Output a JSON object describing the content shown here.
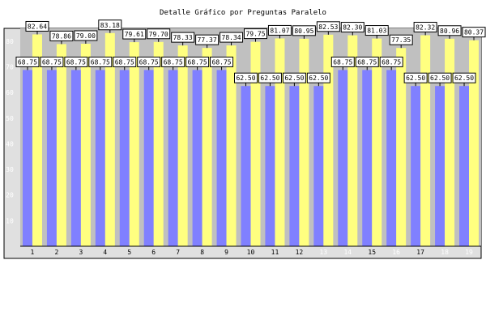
{
  "chart_data": {
    "type": "bar",
    "title": "Detalle Gráfico por Preguntas Paralelo",
    "categories": [
      "1",
      "2",
      "3",
      "4",
      "5",
      "6",
      "7",
      "8",
      "9",
      "10",
      "11",
      "12",
      "13",
      "14",
      "15",
      "16",
      "17",
      "18",
      "19"
    ],
    "series": [
      {
        "color": "#8080ff",
        "labels": [
          "68.75",
          "68.75",
          "68.75",
          "68.75",
          "68.75",
          "68.75",
          "68.75",
          "68.75",
          "68.75",
          "62.50",
          "62.50",
          "62.50",
          "62.50",
          "68.75",
          "68.75",
          "68.75",
          "62.50",
          "62.50",
          "62.50"
        ],
        "values": [
          68.75,
          68.75,
          68.75,
          68.75,
          68.75,
          68.75,
          68.75,
          68.75,
          68.75,
          62.5,
          62.5,
          62.5,
          62.5,
          68.75,
          68.75,
          68.75,
          62.5,
          62.5,
          62.5
        ]
      },
      {
        "color": "#ffff80",
        "labels": [
          "82.64",
          "78.86",
          "79.00",
          "83.18",
          "79.61",
          "79.70",
          "78.33",
          "77.37",
          "78.34",
          "79.75",
          "81.07",
          "80.95",
          "82.53",
          "82.30",
          "81.03",
          "77.35",
          "82.32",
          "80.96",
          "80.37"
        ],
        "values": [
          82.64,
          78.86,
          79.0,
          83.18,
          79.61,
          79.7,
          78.33,
          77.37,
          78.34,
          79.75,
          81.07,
          80.95,
          82.53,
          82.3,
          81.03,
          77.35,
          82.32,
          80.96,
          80.37
        ]
      }
    ],
    "yticks": [
      "10",
      "20",
      "30",
      "40",
      "50",
      "60",
      "70",
      "80"
    ],
    "ylim": [
      0,
      85
    ],
    "grid": false,
    "light_xticks": [
      "13",
      "14",
      "16",
      "18",
      "19"
    ],
    "colors": {
      "plot_bg": "#c0c0c0",
      "frame_bg": "#e0e0e0"
    }
  }
}
